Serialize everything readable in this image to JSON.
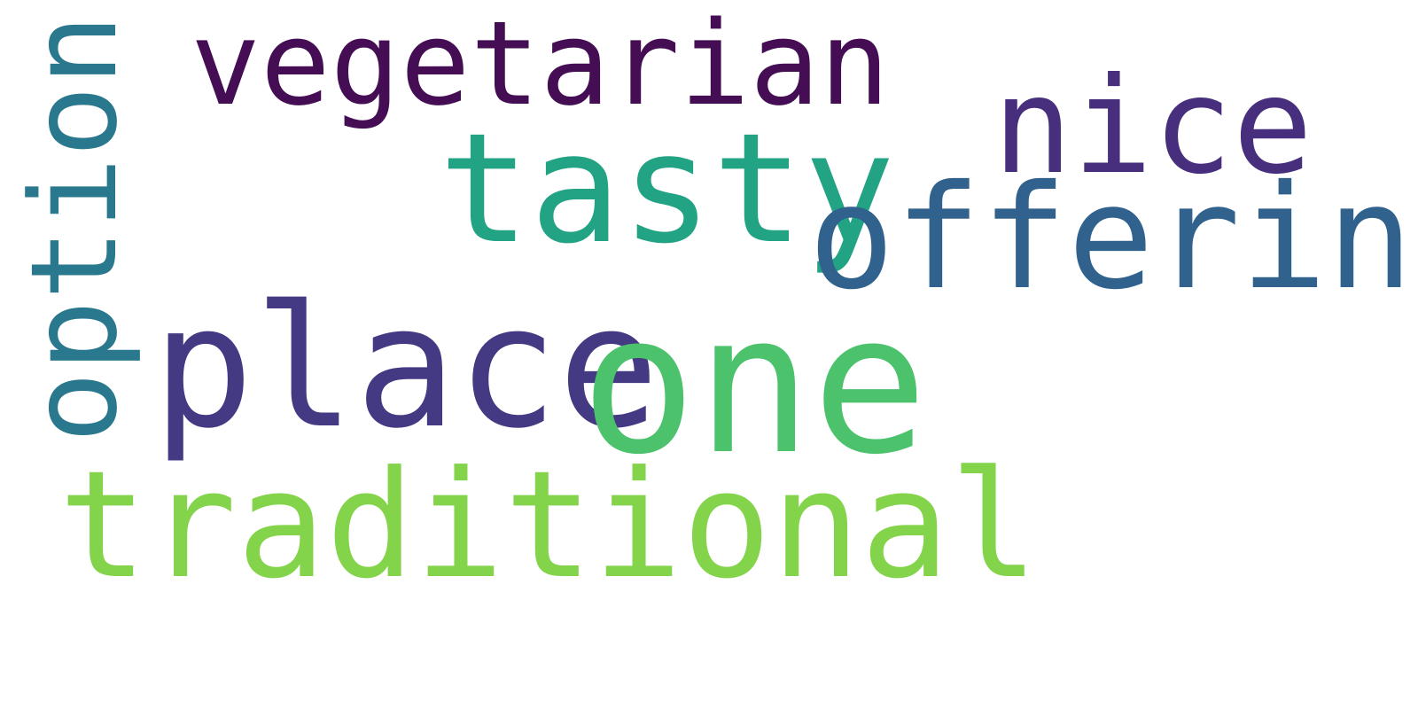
{
  "word_cloud": {
    "words": [
      {
        "text": "vegetarian",
        "color": "#450d54"
      },
      {
        "text": "nice",
        "color": "#472f7d"
      },
      {
        "text": "tasty",
        "color": "#22a384"
      },
      {
        "text": "offering",
        "color": "#30628d"
      },
      {
        "text": "place",
        "color": "#443983"
      },
      {
        "text": "one",
        "color": "#4cc26c"
      },
      {
        "text": "traditional",
        "color": "#84d44b"
      },
      {
        "text": "option",
        "color": "#2a788e"
      }
    ]
  }
}
